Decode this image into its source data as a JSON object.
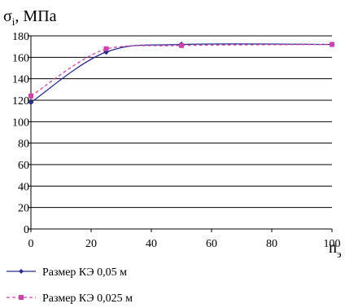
{
  "chart_data": {
    "type": "line",
    "ylabel": "σi, МПа",
    "ylabel_main": "σ",
    "ylabel_sub": "i",
    "ylabel_unit": ", МПа",
    "xlabel": "nэ",
    "xlabel_main": "n",
    "xlabel_sub": "э",
    "xlim": [
      0,
      100
    ],
    "ylim": [
      0,
      180
    ],
    "xticks": [
      "0",
      "20",
      "40",
      "60",
      "80",
      "100"
    ],
    "xtick_values": [
      0,
      20,
      40,
      60,
      80,
      100
    ],
    "yticks": [
      "180",
      "160",
      "140",
      "120",
      "100",
      "80",
      "60",
      "40",
      "20",
      "0"
    ],
    "ytick_values": [
      180,
      160,
      140,
      120,
      100,
      80,
      60,
      40,
      20,
      0
    ],
    "grid": "horizontal",
    "legend_position": "bottom-left",
    "series": [
      {
        "name": "Размер КЭ 0,05 м",
        "color": "#2b2b8c",
        "style": "solid",
        "marker": "diamond",
        "x": [
          0,
          25,
          50,
          100
        ],
        "y": [
          118,
          165,
          172,
          172
        ]
      },
      {
        "name": "Размер КЭ 0,025 м",
        "color": "#cc44aa",
        "style": "dashed",
        "marker": "square",
        "x": [
          0,
          25,
          50,
          100
        ],
        "y": [
          124,
          168,
          171,
          172
        ]
      }
    ]
  }
}
